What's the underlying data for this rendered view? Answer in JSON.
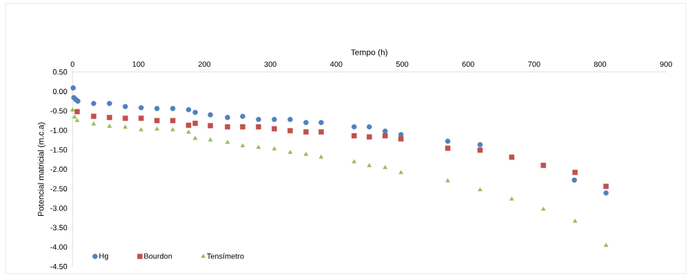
{
  "chart_data": {
    "type": "scatter",
    "xlabel": "Tempo (h)",
    "ylabel": "Potencial matricial (m.c.a)",
    "xlim": [
      0,
      900
    ],
    "xticks": [
      0,
      100,
      200,
      300,
      400,
      500,
      600,
      700,
      800,
      900
    ],
    "ylim": [
      -4.5,
      0.5
    ],
    "yticks": [
      {
        "value": 0.5,
        "label": "0.50"
      },
      {
        "value": 0,
        "label": "0.00"
      },
      {
        "value": -0.5,
        "label": "-0.50"
      },
      {
        "value": -1,
        "label": "-1.00"
      },
      {
        "value": -1.5,
        "label": "-1.50"
      },
      {
        "value": -2,
        "label": "-2.00"
      },
      {
        "value": -2.5,
        "label": "-2.50"
      },
      {
        "value": -3,
        "label": "-3.00"
      },
      {
        "value": -3.5,
        "label": "-3.50"
      },
      {
        "value": -4,
        "label": "-4.00"
      },
      {
        "value": -4.5,
        "label": "-4.50"
      }
    ],
    "grid": false,
    "legend": "bottom left",
    "series": [
      {
        "name": "Hg",
        "color": "#4f81bd",
        "marker": "circle",
        "x": [
          1,
          2,
          5,
          8,
          32,
          56,
          80,
          104,
          128,
          152,
          176,
          186,
          209,
          235,
          258,
          282,
          306,
          330,
          354,
          377,
          427,
          450,
          474,
          498,
          569,
          618,
          761,
          809
        ],
        "values": [
          0.09,
          -0.16,
          -0.21,
          -0.25,
          -0.31,
          -0.31,
          -0.39,
          -0.42,
          -0.44,
          -0.44,
          -0.47,
          -0.54,
          -0.6,
          -0.67,
          -0.64,
          -0.72,
          -0.72,
          -0.72,
          -0.8,
          -0.8,
          -0.91,
          -0.91,
          -1.02,
          -1.11,
          -1.28,
          -1.37,
          -2.28,
          -2.61
        ]
      },
      {
        "name": "Bourdon",
        "color": "#c0504d",
        "marker": "square",
        "x": [
          7,
          32,
          56,
          80,
          104,
          128,
          152,
          176,
          186,
          209,
          235,
          258,
          282,
          306,
          330,
          354,
          377,
          427,
          450,
          474,
          498,
          569,
          618,
          666,
          714,
          762,
          809
        ],
        "values": [
          -0.52,
          -0.64,
          -0.67,
          -0.69,
          -0.69,
          -0.75,
          -0.75,
          -0.87,
          -0.82,
          -0.88,
          -0.91,
          -0.91,
          -0.91,
          -0.96,
          -1.01,
          -1.04,
          -1.04,
          -1.14,
          -1.17,
          -1.14,
          -1.22,
          -1.46,
          -1.51,
          -1.69,
          -1.9,
          -2.08,
          -2.44
        ]
      },
      {
        "name": "Tensímetro",
        "color": "#9bbb59",
        "marker": "triangle",
        "x": [
          0,
          3,
          7,
          32,
          56,
          80,
          104,
          128,
          152,
          176,
          186,
          209,
          235,
          258,
          282,
          306,
          330,
          354,
          377,
          427,
          450,
          474,
          498,
          569,
          618,
          666,
          714,
          762,
          809
        ],
        "values": [
          -0.48,
          -0.66,
          -0.75,
          -0.84,
          -0.9,
          -0.92,
          -0.99,
          -0.97,
          -0.99,
          -1.05,
          -1.21,
          -1.25,
          -1.31,
          -1.4,
          -1.44,
          -1.48,
          -1.57,
          -1.62,
          -1.69,
          -1.81,
          -1.91,
          -1.96,
          -2.09,
          -2.3,
          -2.53,
          -2.77,
          -3.03,
          -3.34,
          -3.96
        ]
      }
    ]
  }
}
